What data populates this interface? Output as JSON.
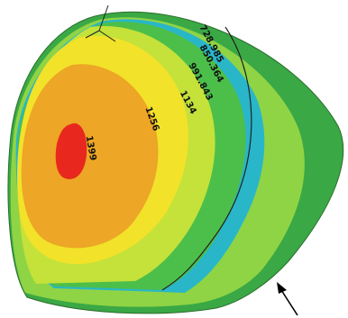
{
  "contour_labels": [
    "728.985",
    "850.364",
    "991.843",
    "1134",
    "1256",
    "1399"
  ]
}
